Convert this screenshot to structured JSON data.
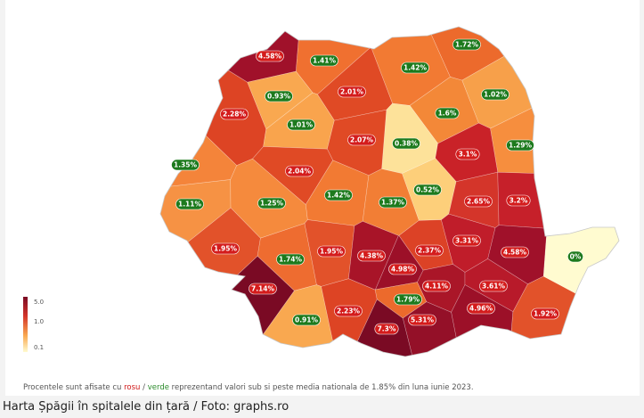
{
  "map": {
    "regions": [
      {
        "label": "4.58%",
        "badge": "red",
        "fill": "#a0112a"
      },
      {
        "label": "1.41%",
        "badge": "green",
        "fill": "#f07030"
      },
      {
        "label": "1.72%",
        "badge": "green",
        "fill": "#ec6a2c"
      },
      {
        "label": "1.42%",
        "badge": "green",
        "fill": "#f27a33"
      },
      {
        "label": "0.93%",
        "badge": "green",
        "fill": "#f9a850"
      },
      {
        "label": "2.01%",
        "badge": "red",
        "fill": "#e04a25"
      },
      {
        "label": "1.02%",
        "badge": "green",
        "fill": "#f7a04a"
      },
      {
        "label": "2.28%",
        "badge": "red",
        "fill": "#dd4424"
      },
      {
        "label": "1.01%",
        "badge": "green",
        "fill": "#f9a44d"
      },
      {
        "label": "1.6%",
        "badge": "green",
        "fill": "#f38838"
      },
      {
        "label": "0.38%",
        "badge": "green",
        "fill": "#fde29a"
      },
      {
        "label": "2.07%",
        "badge": "red",
        "fill": "#e04a25"
      },
      {
        "label": "1.29%",
        "badge": "green",
        "fill": "#f68e3e"
      },
      {
        "label": "3.1%",
        "badge": "red",
        "fill": "#c92228"
      },
      {
        "label": "1.35%",
        "badge": "green",
        "fill": "#f4843a"
      },
      {
        "label": "2.04%",
        "badge": "red",
        "fill": "#e04a25"
      },
      {
        "label": "0.52%",
        "badge": "green",
        "fill": "#fdcf7a"
      },
      {
        "label": "1.42%",
        "badge": "green",
        "fill": "#f27a33"
      },
      {
        "label": "1.37%",
        "badge": "green",
        "fill": "#f27e35"
      },
      {
        "label": "2.65%",
        "badge": "red",
        "fill": "#d4352a"
      },
      {
        "label": "3.2%",
        "badge": "red",
        "fill": "#c6202a"
      },
      {
        "label": "1.11%",
        "badge": "green",
        "fill": "#f69244"
      },
      {
        "label": "1.25%",
        "badge": "green",
        "fill": "#f58a3d"
      },
      {
        "label": "1.95%",
        "badge": "red",
        "fill": "#e2522a"
      },
      {
        "label": "1.74%",
        "badge": "green",
        "fill": "#ee6c30"
      },
      {
        "label": "1.95%",
        "badge": "red",
        "fill": "#e2522a"
      },
      {
        "label": "4.38%",
        "badge": "red",
        "fill": "#a81428"
      },
      {
        "label": "4.98%",
        "badge": "red",
        "fill": "#9c1028"
      },
      {
        "label": "2.37%",
        "badge": "red",
        "fill": "#dc4226"
      },
      {
        "label": "3.31%",
        "badge": "red",
        "fill": "#c01d2a"
      },
      {
        "label": "4.58%",
        "badge": "red",
        "fill": "#a0112a"
      },
      {
        "label": "7.14%",
        "badge": "red",
        "fill": "#7a0a24"
      },
      {
        "label": "4.11%",
        "badge": "red",
        "fill": "#aa1628"
      },
      {
        "label": "1.79%",
        "badge": "green",
        "fill": "#ec6a2c"
      },
      {
        "label": "3.61%",
        "badge": "red",
        "fill": "#b81a2a"
      },
      {
        "label": "0.91%",
        "badge": "green",
        "fill": "#f9a850"
      },
      {
        "label": "2.23%",
        "badge": "red",
        "fill": "#dd4424"
      },
      {
        "label": "4.96%",
        "badge": "red",
        "fill": "#9c1028"
      },
      {
        "label": "5.31%",
        "badge": "red",
        "fill": "#941028"
      },
      {
        "label": "1.92%",
        "badge": "red",
        "fill": "#e2522a"
      },
      {
        "label": "7.3%",
        "badge": "red",
        "fill": "#7a0a24"
      },
      {
        "label": "0%",
        "badge": "green",
        "fill": "#fffbd0"
      }
    ],
    "badge_colors": {
      "red": "#d41c1c",
      "green": "#1d7a1d"
    },
    "legend": {
      "ticks": [
        "5.0",
        "1.0",
        "0.1"
      ]
    }
  },
  "footnote": {
    "before": "Procentele sunt afisate cu ",
    "red": "rosu",
    "sep": " / ",
    "green": "verde",
    "after": " reprezentand valori sub si peste media nationala de 1.85% din luna iunie 2023."
  },
  "caption": "Harta Șpăgii în spitalele din țară / Foto: graphs.ro"
}
